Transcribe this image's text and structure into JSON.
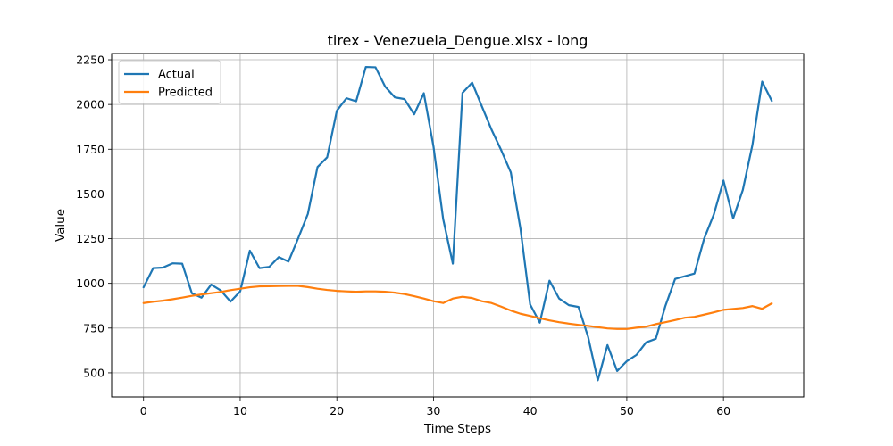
{
  "chart_data": {
    "type": "line",
    "title": "tirex - Venezuela_Dengue.xlsx - long",
    "xlabel": "Time Steps",
    "ylabel": "Value",
    "xlim": [
      -3.3,
      68.3
    ],
    "ylim": [
      365,
      2285
    ],
    "xticks": [
      0,
      10,
      20,
      30,
      40,
      50,
      60
    ],
    "yticks": [
      500,
      750,
      1000,
      1250,
      1500,
      1750,
      2000,
      2250
    ],
    "grid": true,
    "legend_position": "top-left",
    "series": [
      {
        "name": "Actual",
        "color": "#1f77b4",
        "values": [
          978,
          1085,
          1088,
          1112,
          1110,
          945,
          920,
          993,
          960,
          898,
          955,
          1183,
          1085,
          1092,
          1147,
          1122,
          1252,
          1388,
          1650,
          1705,
          1965,
          2035,
          2018,
          2210,
          2208,
          2100,
          2040,
          2030,
          1945,
          2063,
          1765,
          1360,
          1110,
          2065,
          2122,
          1990,
          1860,
          1745,
          1620,
          1305,
          882,
          780,
          1015,
          915,
          878,
          868,
          700,
          458,
          655,
          510,
          565,
          600,
          670,
          690,
          875,
          1025,
          1040,
          1055,
          1250,
          1385,
          1575,
          1363,
          1522,
          1775,
          2128,
          2020
        ]
      },
      {
        "name": "Predicted",
        "color": "#ff7f0e",
        "values": [
          890,
          897,
          903,
          911,
          920,
          930,
          938,
          945,
          952,
          962,
          970,
          978,
          983,
          984,
          985,
          986,
          986,
          979,
          970,
          963,
          958,
          955,
          953,
          955,
          955,
          953,
          948,
          940,
          928,
          915,
          900,
          890,
          915,
          925,
          918,
          900,
          890,
          870,
          848,
          830,
          818,
          805,
          793,
          783,
          775,
          768,
          762,
          755,
          748,
          745,
          745,
          752,
          758,
          772,
          783,
          795,
          808,
          813,
          825,
          838,
          852,
          857,
          862,
          873,
          858,
          888
        ]
      }
    ]
  }
}
